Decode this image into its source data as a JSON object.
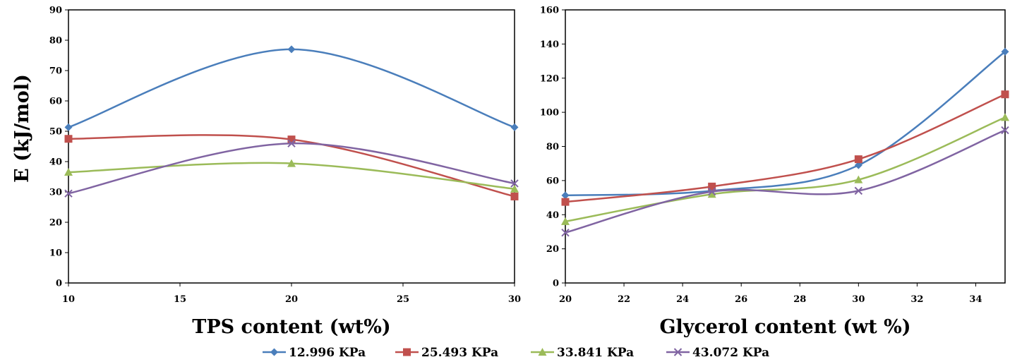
{
  "ylabel": "E (kJ/mol)",
  "legend": [
    {
      "name": "12.996 KPa",
      "color": "#4a7ebb",
      "marker": "diamond"
    },
    {
      "name": "25.493 KPa",
      "color": "#c0504d",
      "marker": "square"
    },
    {
      "name": "33.841 KPa",
      "color": "#9bbb59",
      "marker": "triangle"
    },
    {
      "name": "43.072 KPa",
      "color": "#8064a2",
      "marker": "x"
    }
  ],
  "chart_data": [
    {
      "type": "line",
      "xlabel": "TPS content (wt%)",
      "ylabel": "E (kJ/mol)",
      "xlim": [
        10,
        30
      ],
      "ylim": [
        0,
        90
      ],
      "xticks": [
        "10",
        "15",
        "20",
        "25",
        "30"
      ],
      "yticks": [
        "0",
        "10",
        "20",
        "30",
        "40",
        "50",
        "60",
        "70",
        "80",
        "90"
      ],
      "x": [
        10,
        20,
        30
      ],
      "series": [
        {
          "name": "12.996 KPa",
          "values": [
            51.3,
            77.0,
            51.3
          ]
        },
        {
          "name": "25.493 KPa",
          "values": [
            47.5,
            47.3,
            28.5
          ]
        },
        {
          "name": "33.841 KPa",
          "values": [
            36.5,
            39.4,
            31.0
          ]
        },
        {
          "name": "43.072 KPa",
          "values": [
            29.5,
            46.0,
            32.8
          ]
        }
      ]
    },
    {
      "type": "line",
      "xlabel": "Glycerol content (wt %)",
      "ylabel": "",
      "xlim": [
        20,
        35
      ],
      "ylim": [
        0,
        160
      ],
      "xticks": [
        "20",
        "22",
        "24",
        "26",
        "28",
        "30",
        "32",
        "34"
      ],
      "yticks": [
        "0",
        "20",
        "40",
        "60",
        "80",
        "100",
        "120",
        "140",
        "160"
      ],
      "x": [
        20,
        25,
        30,
        35
      ],
      "series": [
        {
          "name": "12.996 KPa",
          "values": [
            51.3,
            54.0,
            69.0,
            135.5
          ]
        },
        {
          "name": "25.493 KPa",
          "values": [
            47.5,
            56.5,
            72.5,
            110.5
          ]
        },
        {
          "name": "33.841 KPa",
          "values": [
            36.0,
            52.0,
            60.5,
            97.0
          ]
        },
        {
          "name": "43.072 KPa",
          "values": [
            29.5,
            53.5,
            54.0,
            89.5
          ]
        }
      ]
    }
  ]
}
